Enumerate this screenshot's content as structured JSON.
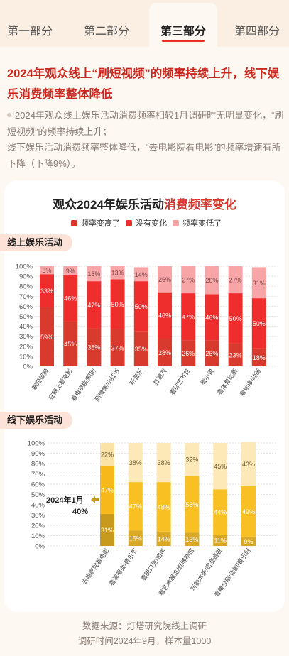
{
  "tabs": [
    {
      "label": "第一部分"
    },
    {
      "label": "第二部分"
    },
    {
      "label": "第三部分",
      "active": true
    },
    {
      "label": "第四部分"
    }
  ],
  "headline": "2024年观众线上“刷短视频”的频率持续上升，线下娱乐消费频率整体降低",
  "bullet_lines": [
    "2024年观众线上娱乐活动消费频率相较1月调研时无明显变化，“刷短视频”的频率持续上升；",
    "线下娱乐活动消费频率整体降低，“去电影院看电影”的频率增速有所下降（下降9%）。"
  ],
  "card": {
    "title_black": "观众2024年娱乐活动",
    "title_red": "消费频率变化"
  },
  "legend": [
    {
      "name": "频率变高了",
      "color": "#d7352c"
    },
    {
      "name": "没有变化",
      "color": "#ee2e2e"
    },
    {
      "name": "频率变低了",
      "color": "#f6a3a6"
    }
  ],
  "sections": {
    "online": "线上娱乐活动",
    "offline": "线下娱乐活动"
  },
  "chart_data": [
    {
      "type": "bar",
      "stacked": true,
      "title": "线上娱乐活动",
      "categories": [
        "刷短视频",
        "在网上看电影",
        "看电视剧/网剧",
        "刷微博/小红书",
        "听音乐",
        "打游戏",
        "看综艺节目",
        "看小说",
        "看体育比赛",
        "看动漫/动画"
      ],
      "series": [
        {
          "name": "频率变高了",
          "color": "#d83a2e",
          "values": [
            59,
            45,
            38,
            37,
            35,
            28,
            26,
            26,
            23,
            18
          ]
        },
        {
          "name": "没有变化",
          "color": "#ee2d2d",
          "values": [
            33,
            46,
            47,
            50,
            50,
            46,
            47,
            46,
            50,
            50
          ]
        },
        {
          "name": "频率变低了",
          "color": "#f7a5a7",
          "values": [
            8,
            9,
            15,
            13,
            14,
            26,
            27,
            28,
            27,
            31
          ]
        }
      ],
      "yticks": [
        "0%",
        "10%",
        "20%",
        "30%",
        "40%",
        "50%",
        "60%",
        "70%",
        "80%",
        "90%",
        "100%"
      ],
      "ylim": [
        0,
        100
      ]
    },
    {
      "type": "bar",
      "stacked": true,
      "title": "线下娱乐活动",
      "categories": [
        "去电影院看电影",
        "看演唱会/音乐节",
        "看脱口秀/相声",
        "看艺术展览/逛博物馆",
        "玩剧本杀/密室逃脱",
        "看舞台剧/话剧/音乐剧"
      ],
      "series": [
        {
          "name": "频率变高了",
          "values": [
            31,
            15,
            14,
            13,
            11,
            9
          ]
        },
        {
          "name": "没有变化",
          "values": [
            47,
            47,
            48,
            55,
            44,
            49
          ]
        },
        {
          "name": "频率变低了",
          "values": [
            22,
            38,
            38,
            32,
            45,
            43
          ]
        }
      ],
      "series_colors": {
        "first_bar": [
          "#c79a1e",
          "#f6b81a",
          "#fbe2a6"
        ],
        "others": [
          "#d9a825",
          "#f8c023",
          "#fde9b7"
        ]
      },
      "annotation": {
        "label": "2024年1月",
        "value": "40%",
        "ref_value": 40
      },
      "yticks": [
        "0%",
        "10%",
        "20%",
        "30%",
        "40%",
        "50%",
        "60%",
        "70%",
        "80%",
        "90%",
        "100%"
      ],
      "ylim": [
        0,
        100
      ]
    }
  ],
  "footer": {
    "line1": "数据来源：灯塔研究院线上调研",
    "line2": "调研时间2024年9月，样本量1000"
  }
}
